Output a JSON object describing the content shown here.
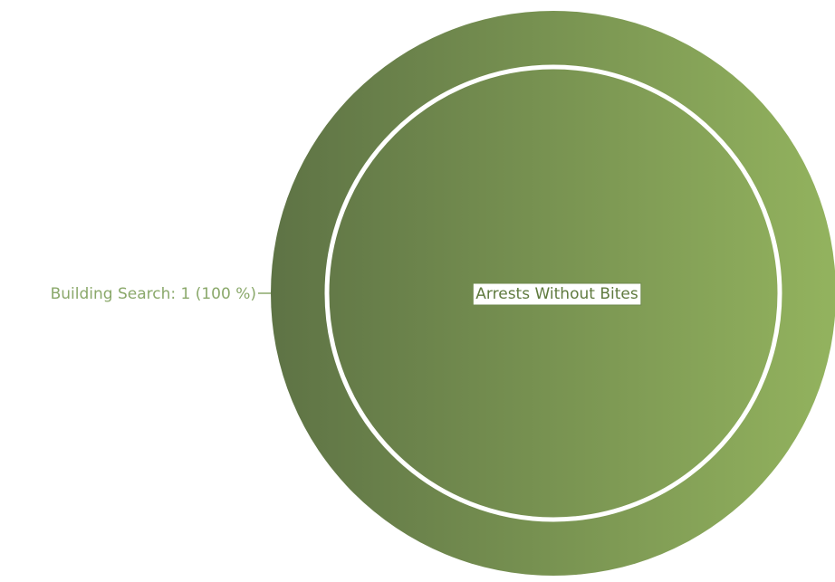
{
  "chart_data": {
    "type": "pie",
    "title": "",
    "center_label": "Arrests Without Bites",
    "slices": [
      {
        "label": "Building Search",
        "value": 1,
        "percent": 100,
        "display": "Building Search: 1 (100 %)"
      }
    ],
    "colors": {
      "gradient_start": "#5e7345",
      "gradient_end": "#93b35e",
      "ring": "#ffffff",
      "label_text": "#8aa86a",
      "leader_line": "#8aa86a",
      "center_label_bg": "#ffffff",
      "center_label_border": "#6f8a4e",
      "center_label_text": "#5f7a3e"
    }
  }
}
